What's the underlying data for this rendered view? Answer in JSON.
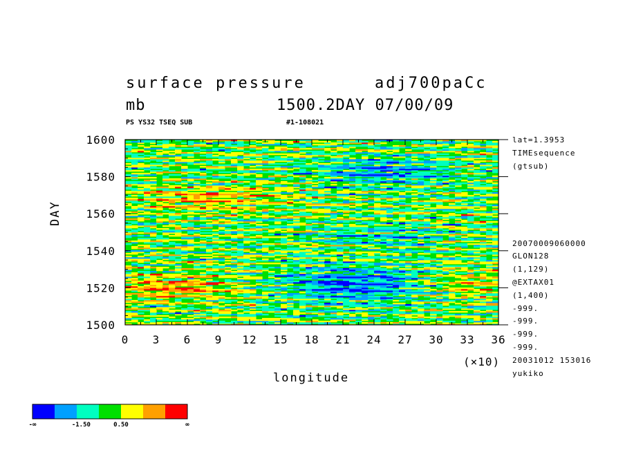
{
  "title": {
    "variable": "surface pressure",
    "run": "adj700paCc",
    "unit": "mb",
    "time": "1500.2DAY 07/00/09",
    "subleft": "PS YS32 TSEQ SUB",
    "subright": "#1-108021"
  },
  "meta_right": [
    "lat=1.3953",
    "TIMEsequence",
    "(gtsub)",
    "20070009060000",
    "GLON128",
    "(1,129)",
    "@EXTAX01",
    "(1,400)",
    "-999.",
    "-999.",
    "-999.",
    "-999.",
    "20031012 153016",
    "yukiko"
  ],
  "colorbar": {
    "colors": [
      "#0000ff",
      "#00a0ff",
      "#00ffc0",
      "#00e000",
      "#ffff00",
      "#ffa000",
      "#ff0000"
    ],
    "labels": [
      "-∞",
      "-1.50",
      "0.50",
      "∞"
    ]
  },
  "chart_data": {
    "type": "heatmap",
    "title": "surface pressure",
    "xlabel": "longitude",
    "ylabel": "DAY",
    "x_multiplier": "(×10)",
    "xlim": [
      0,
      36
    ],
    "ylim": [
      1500,
      1600
    ],
    "x_ticks": [
      "0",
      "3",
      "6",
      "9",
      "12",
      "15",
      "18",
      "21",
      "24",
      "27",
      "30",
      "33",
      "36"
    ],
    "y_ticks": [
      "1600",
      "1580",
      "1560",
      "1540",
      "1520",
      "1500"
    ],
    "levels": [
      -1.5,
      -0.5,
      0.5,
      1.5
    ],
    "description": "Banded time-longitude anomaly; higher values (yellow/orange/red) concentrated at longitudes 0-12 near days 1515-1525 and 1560-1575; lower values (blue) at longitudes 15-30 near days 1505-1535 and 1570-1590."
  }
}
